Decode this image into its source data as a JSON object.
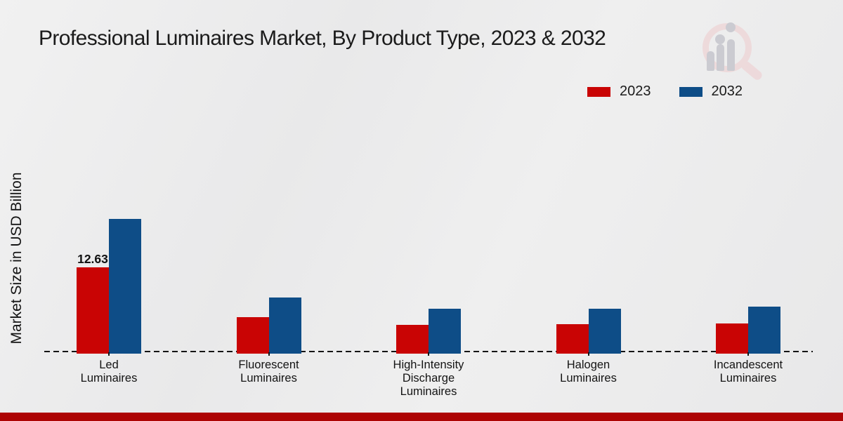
{
  "title": "Professional Luminaires Market, By Product Type, 2023 & 2032",
  "ylabel": "Market Size in USD Billion",
  "legend": {
    "position": "top-right",
    "items": [
      {
        "label": "2023",
        "color": "#c90404"
      },
      {
        "label": "2032",
        "color": "#0e4d87"
      }
    ]
  },
  "branding": {
    "logo_icon": "magnifier-bar-chart-watermark",
    "bottom_strip_color": "#ad0404"
  },
  "chart_data": {
    "type": "bar",
    "title": "Professional Luminaires Market, By Product Type, 2023 & 2032",
    "xlabel": "",
    "ylabel": "Market Size in USD Billion",
    "categories": [
      "Led\nLuminaires",
      "Fluorescent\nLuminaires",
      "High-Intensity\nDischarge\nLuminaires",
      "Halogen\nLuminaires",
      "Incandescent\nLuminaires"
    ],
    "series": [
      {
        "name": "2023",
        "color": "#c90404",
        "values": [
          12.63,
          5.2,
          4.1,
          4.2,
          4.3
        ]
      },
      {
        "name": "2032",
        "color": "#0e4d87",
        "values": [
          19.8,
          8.1,
          6.5,
          6.5,
          6.8
        ]
      }
    ],
    "data_labels": [
      {
        "series_index": 0,
        "category_index": 0,
        "text": "12.63"
      }
    ],
    "ylim": [
      0,
      21
    ],
    "grid": false,
    "axis_style": "dashed-baseline-only",
    "legend_position": "top-right"
  }
}
